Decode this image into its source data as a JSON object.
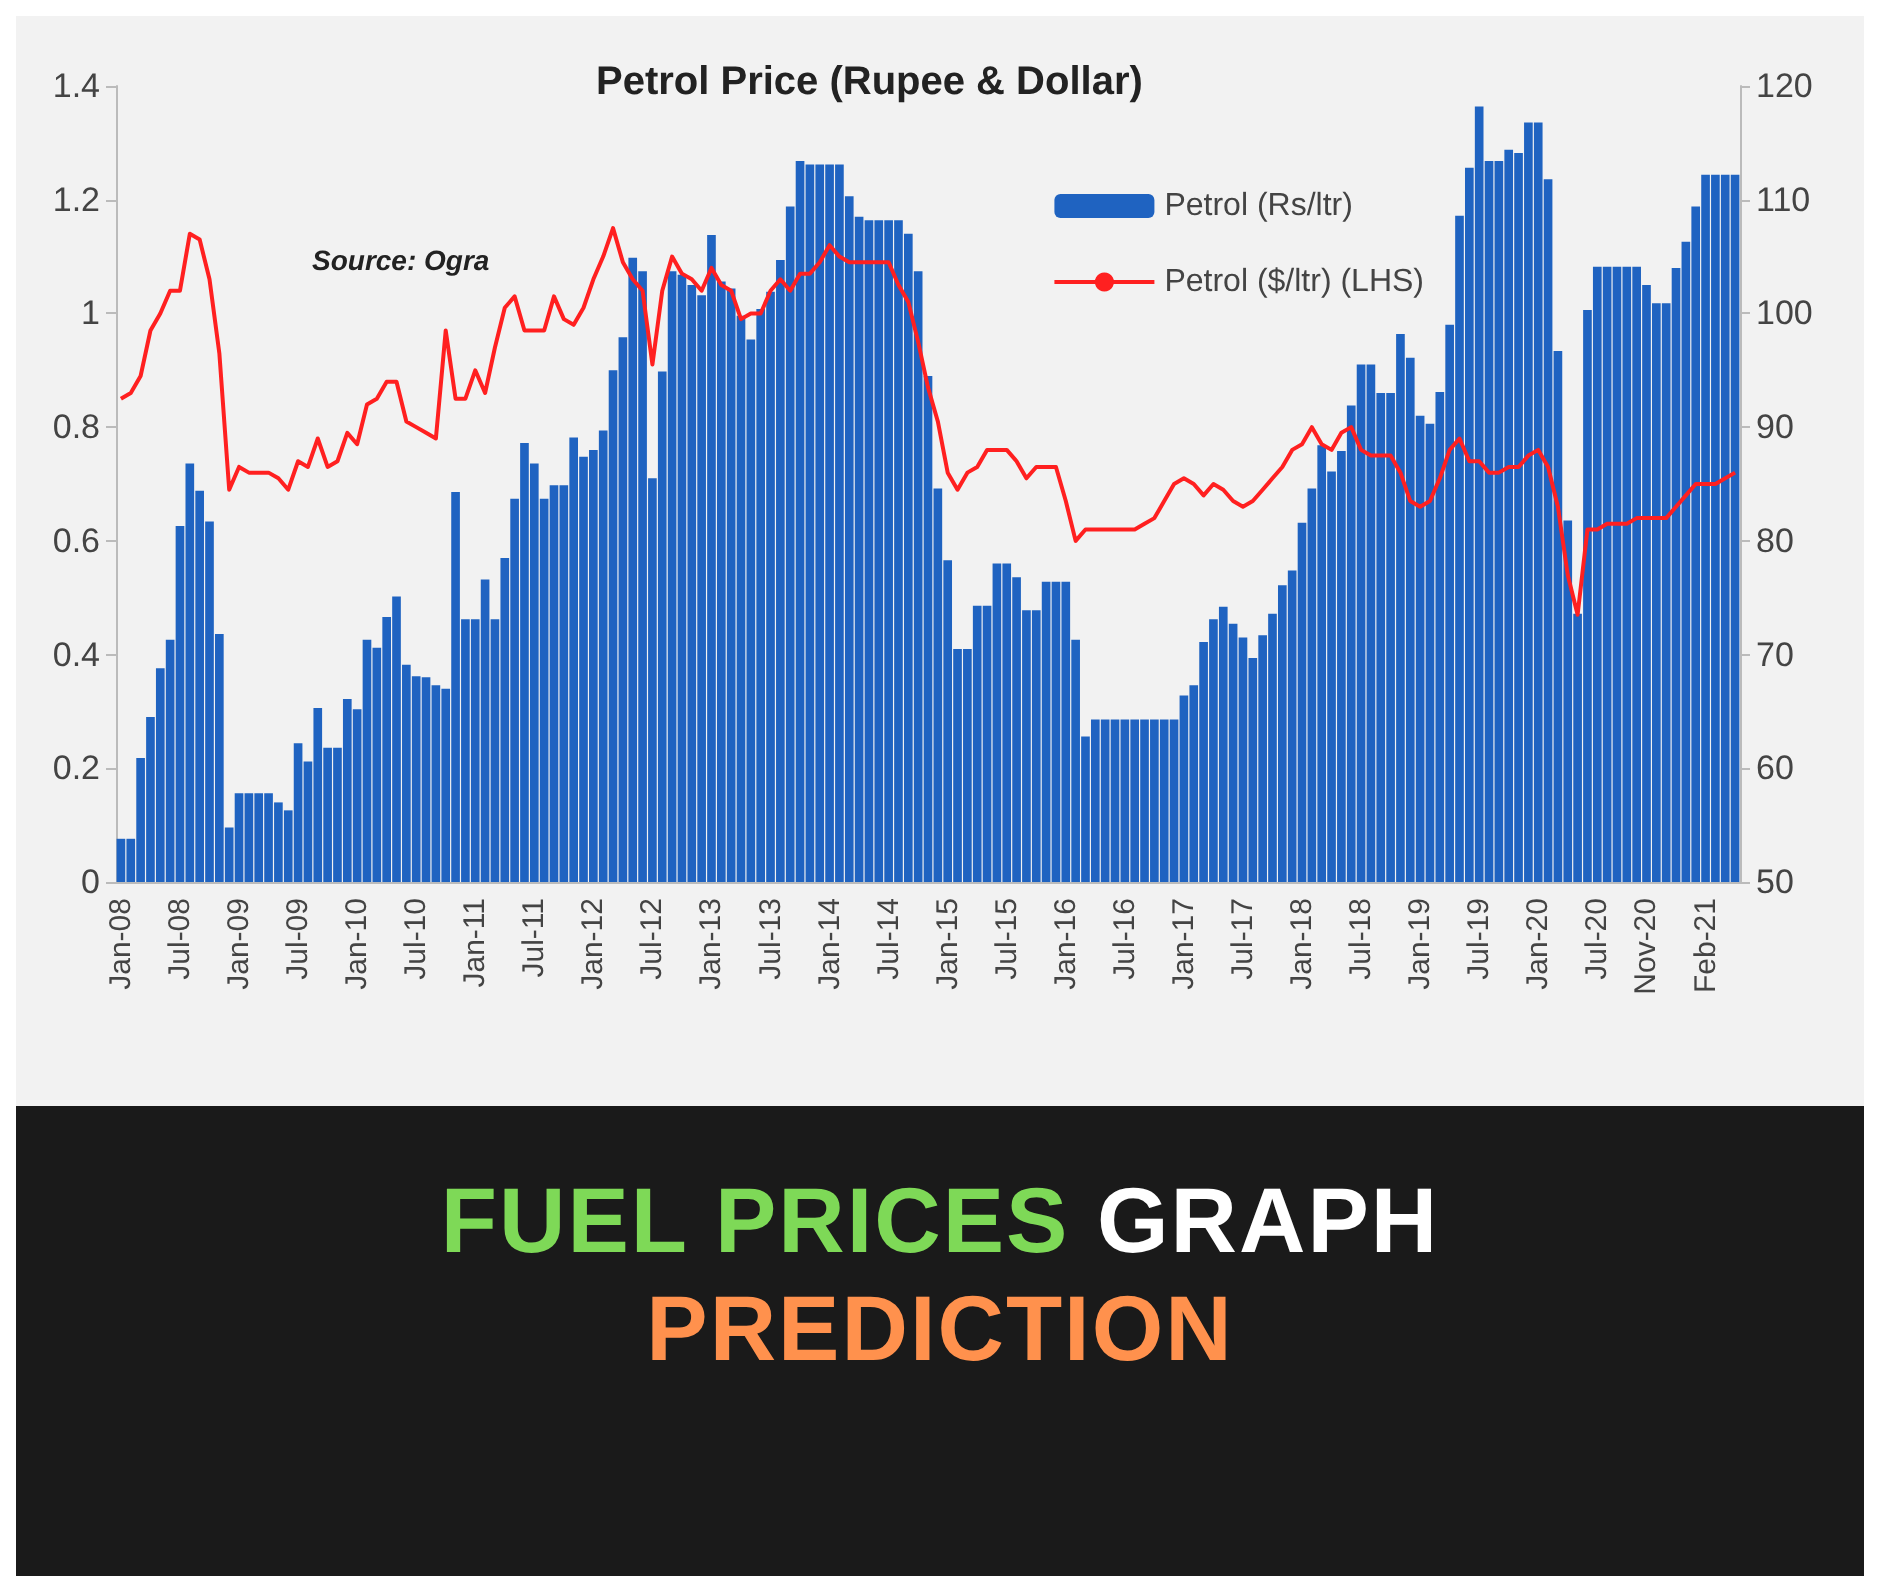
{
  "chart_data": {
    "type": "bar",
    "title": "Petrol Price (Rupee & Dollar)",
    "subtitle": "FUEL PRICES GRAPH PREDICTION",
    "annotations": [
      "Source: Ogra"
    ],
    "categories": [
      "Jan-08",
      null,
      null,
      null,
      null,
      null,
      "Jul-08",
      null,
      null,
      null,
      null,
      null,
      "Jan-09",
      null,
      null,
      null,
      null,
      null,
      "Jul-09",
      null,
      null,
      null,
      null,
      null,
      "Jan-10",
      null,
      null,
      null,
      null,
      null,
      "Jul-10",
      null,
      null,
      null,
      null,
      null,
      "Jan-11",
      null,
      null,
      null,
      null,
      null,
      "Jul-11",
      null,
      null,
      null,
      null,
      null,
      "Jan-12",
      null,
      null,
      null,
      null,
      null,
      "Jul-12",
      null,
      null,
      null,
      null,
      null,
      "Jan-13",
      null,
      null,
      null,
      null,
      null,
      "Jul-13",
      null,
      null,
      null,
      null,
      null,
      "Jan-14",
      null,
      null,
      null,
      null,
      null,
      "Jul-14",
      null,
      null,
      null,
      null,
      null,
      "Jan-15",
      null,
      null,
      null,
      null,
      null,
      "Jul-15",
      null,
      null,
      null,
      null,
      null,
      "Jan-16",
      null,
      null,
      null,
      null,
      null,
      "Jul-16",
      null,
      null,
      null,
      null,
      null,
      "Jan-17",
      null,
      null,
      null,
      null,
      null,
      "Jul-17",
      null,
      null,
      null,
      null,
      null,
      "Jan-18",
      null,
      null,
      null,
      null,
      null,
      "Jul-18",
      null,
      null,
      null,
      null,
      null,
      "Jan-19",
      null,
      null,
      null,
      null,
      null,
      "Jul-19",
      null,
      null,
      null,
      null,
      null,
      "Jan-20",
      null,
      null,
      null,
      null,
      null,
      "Jul-20",
      null,
      null,
      null,
      null,
      "Nov-20",
      null,
      null,
      null,
      null,
      null,
      "Feb-21",
      null,
      null,
      null
    ],
    "series": [
      {
        "name": "Petrol (Rs/ltr)",
        "axis": "y2",
        "color": "#1f63c1",
        "values": [
          53.8,
          53.8,
          60.9,
          64.5,
          68.8,
          71.3,
          81.3,
          86.8,
          84.4,
          81.7,
          71.8,
          54.8,
          57.8,
          57.8,
          57.8,
          57.8,
          57.0,
          56.3,
          62.2,
          60.6,
          65.3,
          61.8,
          61.8,
          66.1,
          65.2,
          71.3,
          70.6,
          73.3,
          75.1,
          69.1,
          68.1,
          68.0,
          67.3,
          67.0,
          84.3,
          73.1,
          73.1,
          76.6,
          73.1,
          78.5,
          83.7,
          88.6,
          86.8,
          83.7,
          84.9,
          84.9,
          89.1,
          87.4,
          88.0,
          89.7,
          95.0,
          97.9,
          104.9,
          103.7,
          85.5,
          94.9,
          103.7,
          103.4,
          102.5,
          101.6,
          106.9,
          102.8,
          102.2,
          99.8,
          97.7,
          100.4,
          101.9,
          104.7,
          109.4,
          113.4,
          113.1,
          113.1,
          113.1,
          113.1,
          110.3,
          108.5,
          108.2,
          108.2,
          108.2,
          108.2,
          107.0,
          103.7,
          94.5,
          84.6,
          78.3,
          70.5,
          70.5,
          74.3,
          74.3,
          78.0,
          78.0,
          76.8,
          73.9,
          73.9,
          76.4,
          76.4,
          76.4,
          71.3,
          62.8,
          64.3,
          64.3,
          64.3,
          64.3,
          64.3,
          64.3,
          64.3,
          64.3,
          64.3,
          66.4,
          67.3,
          71.1,
          73.1,
          74.2,
          72.7,
          71.5,
          69.7,
          71.7,
          73.6,
          76.1,
          77.4,
          81.6,
          84.6,
          88.4,
          86.1,
          87.9,
          91.9,
          95.5,
          95.5,
          93.0,
          93.0,
          98.2,
          96.1,
          91.0,
          90.3,
          93.1,
          99.0,
          108.6,
          112.8,
          118.2,
          113.4,
          113.4,
          114.4,
          114.1,
          116.8,
          116.8,
          111.8,
          96.7,
          81.8,
          73.6,
          100.3,
          104.1,
          104.1,
          104.1,
          104.1,
          104.1,
          102.5,
          100.9,
          100.9,
          104.0,
          106.3,
          109.4,
          112.2,
          112.2,
          112.2,
          112.2
        ]
      },
      {
        "name": "Petrol ($/ltr) (LHS)",
        "type": "line",
        "color": "#ff2020",
        "values": [
          0.85,
          0.86,
          0.89,
          0.97,
          1.0,
          1.04,
          1.04,
          1.14,
          1.13,
          1.06,
          0.93,
          0.69,
          0.73,
          0.72,
          0.72,
          0.72,
          0.71,
          0.69,
          0.74,
          0.73,
          0.78,
          0.73,
          0.74,
          0.79,
          0.77,
          0.84,
          0.85,
          0.88,
          0.88,
          0.81,
          0.8,
          0.79,
          0.78,
          0.97,
          0.85,
          0.85,
          0.9,
          0.86,
          0.94,
          1.01,
          1.03,
          0.97,
          0.97,
          0.97,
          1.03,
          0.99,
          0.98,
          1.01,
          1.06,
          1.1,
          1.15,
          1.09,
          1.06,
          1.04,
          0.91,
          1.04,
          1.1,
          1.07,
          1.06,
          1.04,
          1.08,
          1.05,
          1.04,
          0.99,
          1.0,
          1.0,
          1.04,
          1.06,
          1.04,
          1.07,
          1.07,
          1.09,
          1.12,
          1.1,
          1.09,
          1.09,
          1.09,
          1.09,
          1.09,
          1.05,
          1.02,
          0.95,
          0.87,
          0.81,
          0.72,
          0.69,
          0.72,
          0.73,
          0.76,
          0.76,
          0.76,
          0.74,
          0.71,
          0.73,
          0.73,
          0.73,
          0.67,
          0.6,
          0.62,
          0.62,
          0.62,
          0.62,
          0.62,
          0.62,
          0.63,
          0.64,
          0.67,
          0.7,
          0.71,
          0.7,
          0.68,
          0.7,
          0.69,
          0.67,
          0.66,
          0.67,
          0.69,
          0.71,
          0.73,
          0.76,
          0.77,
          0.8,
          0.77,
          0.76,
          0.79,
          0.8,
          0.76,
          0.75,
          0.75,
          0.75,
          0.72,
          0.67,
          0.66,
          0.67,
          0.71,
          0.76,
          0.78,
          0.74,
          0.74,
          0.72,
          0.72,
          0.73,
          0.73,
          0.75,
          0.76,
          0.73,
          0.66,
          0.54,
          0.47,
          0.62,
          0.62,
          0.63,
          0.63,
          0.63,
          0.64,
          0.64,
          0.64,
          0.64,
          0.66,
          0.68,
          0.7,
          0.7,
          0.7,
          0.71,
          0.72
        ]
      }
    ],
    "ylim": [
      0,
      1.4
    ],
    "yticks": [
      0,
      0.2,
      0.4,
      0.6,
      0.8,
      1,
      1.2,
      1.4
    ],
    "y2lim": [
      50,
      120
    ],
    "y2ticks": [
      50,
      60,
      70,
      80,
      90,
      100,
      110,
      120
    ],
    "legend": "top right",
    "grid": false
  }
}
